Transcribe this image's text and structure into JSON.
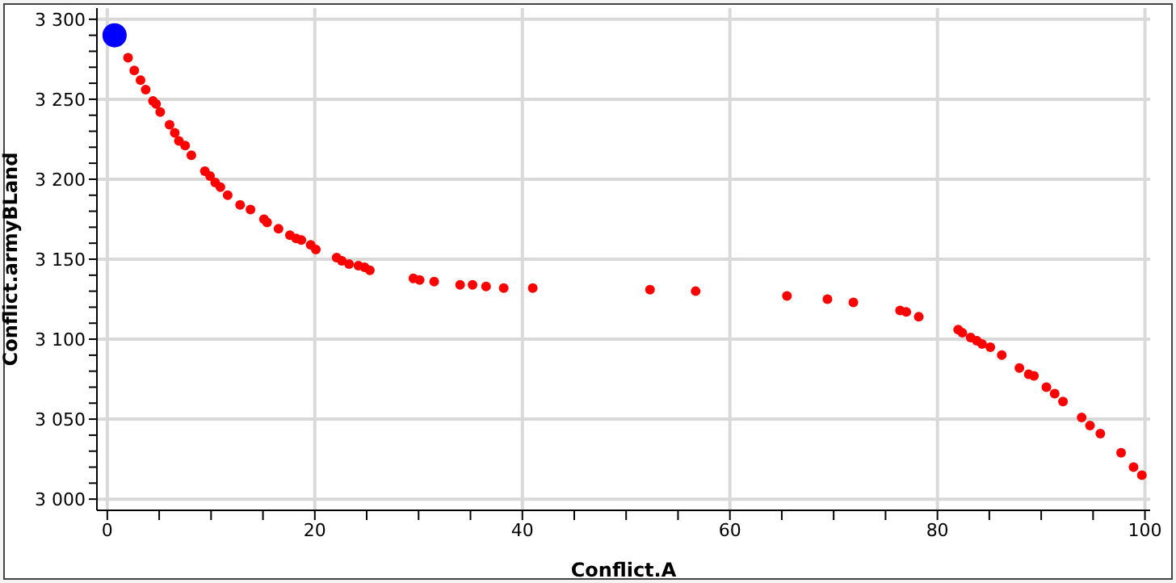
{
  "chart_data": {
    "type": "scatter",
    "xlabel": "Conflict.A",
    "ylabel": "Conflict.armyBLand",
    "xlim": [
      -1,
      100.5
    ],
    "ylim": [
      2993,
      3307
    ],
    "xticks": [
      0,
      {
        "value": 5,
        "label": null
      },
      {
        "value": 10,
        "label": null
      },
      {
        "value": 15,
        "label": null
      },
      20,
      {
        "value": 25,
        "label": null
      },
      {
        "value": 30,
        "label": null
      },
      {
        "value": 35,
        "label": null
      },
      40,
      {
        "value": 45,
        "label": null
      },
      {
        "value": 50,
        "label": null
      },
      {
        "value": 55,
        "label": null
      },
      60,
      {
        "value": 65,
        "label": null
      },
      {
        "value": 70,
        "label": null
      },
      {
        "value": 75,
        "label": null
      },
      80,
      {
        "value": 85,
        "label": null
      },
      {
        "value": 90,
        "label": null
      },
      {
        "value": 95,
        "label": null
      },
      100
    ],
    "yticks": [
      {
        "value": 3000,
        "label": "3 000"
      },
      {
        "value": 3010,
        "label": null
      },
      {
        "value": 3020,
        "label": null
      },
      {
        "value": 3030,
        "label": null
      },
      {
        "value": 3040,
        "label": null
      },
      {
        "value": 3050,
        "label": "3 050"
      },
      {
        "value": 3060,
        "label": null
      },
      {
        "value": 3070,
        "label": null
      },
      {
        "value": 3080,
        "label": null
      },
      {
        "value": 3090,
        "label": null
      },
      {
        "value": 3100,
        "label": "3 100"
      },
      {
        "value": 3110,
        "label": null
      },
      {
        "value": 3120,
        "label": null
      },
      {
        "value": 3130,
        "label": null
      },
      {
        "value": 3140,
        "label": null
      },
      {
        "value": 3150,
        "label": "3 150"
      },
      {
        "value": 3160,
        "label": null
      },
      {
        "value": 3170,
        "label": null
      },
      {
        "value": 3180,
        "label": null
      },
      {
        "value": 3190,
        "label": null
      },
      {
        "value": 3200,
        "label": "3 200"
      },
      {
        "value": 3210,
        "label": null
      },
      {
        "value": 3220,
        "label": null
      },
      {
        "value": 3230,
        "label": null
      },
      {
        "value": 3240,
        "label": null
      },
      {
        "value": 3250,
        "label": "3 250"
      },
      {
        "value": 3260,
        "label": null
      },
      {
        "value": 3270,
        "label": null
      },
      {
        "value": 3280,
        "label": null
      },
      {
        "value": 3290,
        "label": null
      },
      {
        "value": 3300,
        "label": "3 300"
      }
    ],
    "grid": true,
    "marker": "circle",
    "series": [
      {
        "color": "#0000ff",
        "x": [
          0.7
        ],
        "values": [
          3290
        ]
      },
      {
        "color": "#ff0000",
        "x": [
          2.0,
          2.6,
          3.2,
          3.7,
          4.4,
          4.7,
          5.1,
          6.0,
          6.5,
          6.9,
          7.5,
          8.1,
          9.4,
          9.9,
          10.4,
          10.9,
          11.6,
          12.8,
          13.8,
          15.1,
          15.4,
          16.5,
          17.6,
          18.2,
          18.7,
          19.6,
          20.1,
          22.1,
          22.6,
          23.3,
          24.2,
          24.8,
          25.3,
          29.5,
          30.1,
          31.5,
          34.0,
          35.2,
          36.5,
          38.2,
          41.0,
          52.3,
          56.7,
          65.5,
          69.4,
          71.9,
          76.4,
          77.0,
          78.2,
          82.0,
          82.4,
          83.2,
          83.8,
          84.3,
          85.1,
          86.2,
          87.9,
          88.8,
          89.3,
          90.5,
          91.3,
          92.1,
          93.9,
          94.7,
          95.7,
          97.7,
          98.9,
          99.7
        ],
        "values": [
          3276,
          3268,
          3262,
          3256,
          3249,
          3247,
          3242,
          3234,
          3229,
          3224,
          3221,
          3215,
          3205,
          3202,
          3198,
          3195,
          3190,
          3184,
          3181,
          3175,
          3173,
          3169,
          3165,
          3163,
          3162,
          3159,
          3156,
          3151,
          3149,
          3147,
          3146,
          3145,
          3143,
          3138,
          3137,
          3136,
          3134,
          3134,
          3133,
          3132,
          3132,
          3131,
          3130,
          3127,
          3125,
          3123,
          3118,
          3117,
          3114,
          3106,
          3104,
          3101,
          3099,
          3097,
          3095,
          3090,
          3082,
          3078,
          3077,
          3070,
          3066,
          3061,
          3051,
          3046,
          3041,
          3029,
          3020,
          3015
        ]
      }
    ]
  }
}
